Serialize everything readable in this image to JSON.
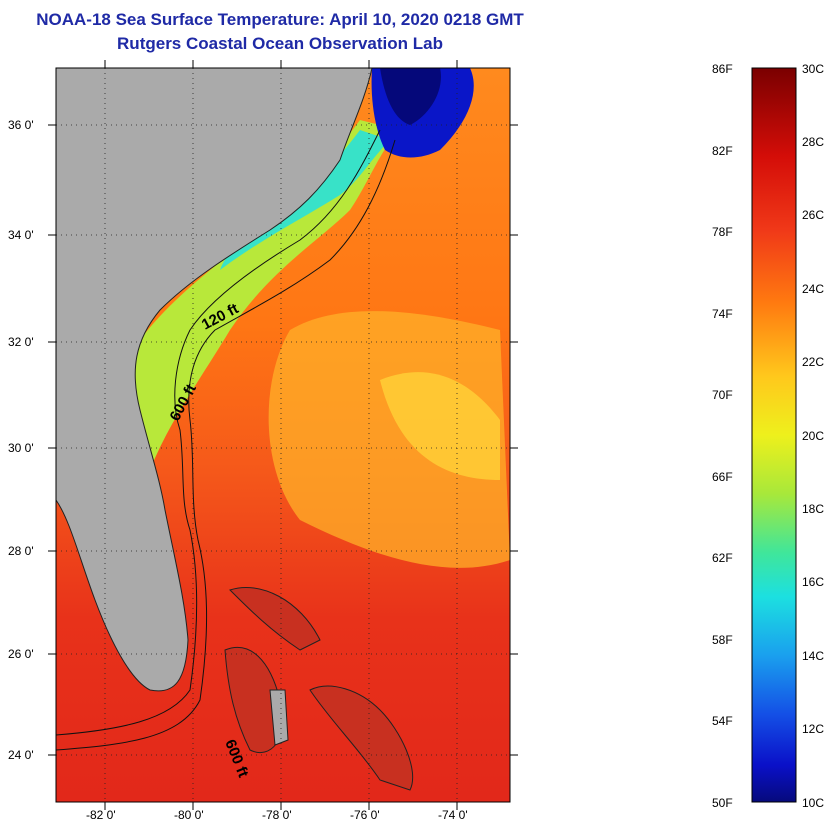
{
  "title": "NOAA-18 Sea Surface Temperature:  April 10, 2020 0218 GMT",
  "subtitle": "Rutgers Coastal Ocean Observation Lab",
  "y_axis_labels": [
    "36 0'",
    "34 0'",
    "32 0'",
    "30 0'",
    "28 0'",
    "26 0'",
    "24 0'"
  ],
  "x_axis_labels": [
    "-82 0'",
    "-80 0'",
    "-78 0'",
    "-76 0'",
    "-74 0'"
  ],
  "contour_labels": [
    "120 ft",
    "600 ft",
    "600 ft"
  ],
  "colorbar": {
    "fahrenheit": [
      "86F",
      "82F",
      "78F",
      "74F",
      "70F",
      "66F",
      "62F",
      "58F",
      "54F",
      "50F"
    ],
    "celsius": [
      "30C",
      "28C",
      "26C",
      "24C",
      "22C",
      "20C",
      "18C",
      "16C",
      "14C",
      "12C",
      "10C"
    ]
  },
  "colors": {
    "title": "#1f2aa6",
    "land": "#aaaaaa",
    "warm": "#e8321a",
    "cold": "#0a16c8"
  }
}
